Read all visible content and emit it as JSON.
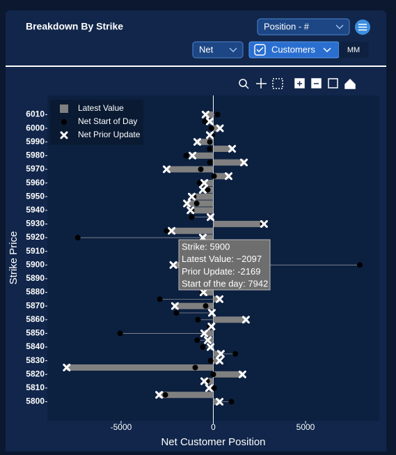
{
  "header": {
    "title": "Breakdown By Strike",
    "position_select": "Position - #",
    "net_select": "Net",
    "customers_button": "Customers",
    "mm_button": "MM"
  },
  "tooltip": {
    "lines": [
      "Strike: 5900",
      "Latest Value: −2097",
      "Prior Update: -2169",
      "Start of the day: 7942"
    ]
  },
  "chart_data": {
    "type": "bar",
    "orientation": "horizontal",
    "x_label": "Net Customer Position",
    "y_label": "Strike Price",
    "strikes": [
      6010,
      6005,
      6000,
      5995,
      5990,
      5985,
      5980,
      5975,
      5970,
      5965,
      5960,
      5955,
      5950,
      5945,
      5940,
      5935,
      5930,
      5925,
      5920,
      5915,
      5910,
      5905,
      5900,
      5895,
      5890,
      5885,
      5880,
      5875,
      5870,
      5865,
      5860,
      5855,
      5850,
      5845,
      5840,
      5835,
      5830,
      5825,
      5820,
      5815,
      5810,
      5805,
      5800
    ],
    "series": [
      {
        "name": "Latest Value",
        "color": "#808080",
        "marker": "bar",
        "values": [
          -400,
          -190,
          340,
          -190,
          -870,
          1000,
          -1130,
          1660,
          -2500,
          830,
          -490,
          -560,
          -1170,
          -1430,
          -1240,
          -150,
          2750,
          -2260,
          -570,
          -200,
          -300,
          -150,
          -2097,
          -400,
          -250,
          -150,
          -530,
          340,
          -2080,
          -75,
          1770,
          -100,
          -490,
          -300,
          -150,
          410,
          340,
          -7950,
          1580,
          -490,
          -230,
          -2940,
          340
        ]
      },
      {
        "name": "Net Start of Day",
        "color": "#000000",
        "marker": "circle",
        "values": [
          230,
          -450,
          -100,
          -60,
          -190,
          -200,
          -1470,
          -190,
          -680,
          40,
          -750,
          -300,
          -1060,
          -900,
          -1170,
          -1170,
          2680,
          -2530,
          -7350,
          100,
          -100,
          50,
          7942,
          -600,
          -300,
          -100,
          -600,
          -2900,
          -415,
          -2000,
          -830,
          -200,
          -5050,
          -870,
          -570,
          1200,
          -150,
          -980,
          0,
          -340,
          40,
          -2600,
          980
        ]
      },
      {
        "name": "Net Prior Update",
        "color": "#ffffff",
        "marker": "x",
        "values": [
          -420,
          -190,
          360,
          -190,
          -870,
          1020,
          -1130,
          1660,
          -2530,
          830,
          -490,
          -570,
          -1170,
          -1430,
          -1240,
          -150,
          2750,
          -2260,
          -570,
          -200,
          -300,
          -150,
          -2169,
          -400,
          -250,
          -150,
          -530,
          340,
          -2080,
          -75,
          1770,
          -100,
          -490,
          -300,
          -150,
          410,
          340,
          -7950,
          1580,
          -490,
          -230,
          -2940,
          340
        ]
      }
    ],
    "xlim": [
      -9000,
      9000
    ],
    "xticks": [
      -5000,
      0,
      5000
    ],
    "ylim": [
      5786,
      6024
    ],
    "yticks": [
      6010,
      6000,
      5990,
      5980,
      5970,
      5960,
      5950,
      5940,
      5930,
      5920,
      5910,
      5900,
      5890,
      5880,
      5870,
      5860,
      5850,
      5840,
      5830,
      5820,
      5810,
      5800
    ],
    "legend": "upper left"
  }
}
